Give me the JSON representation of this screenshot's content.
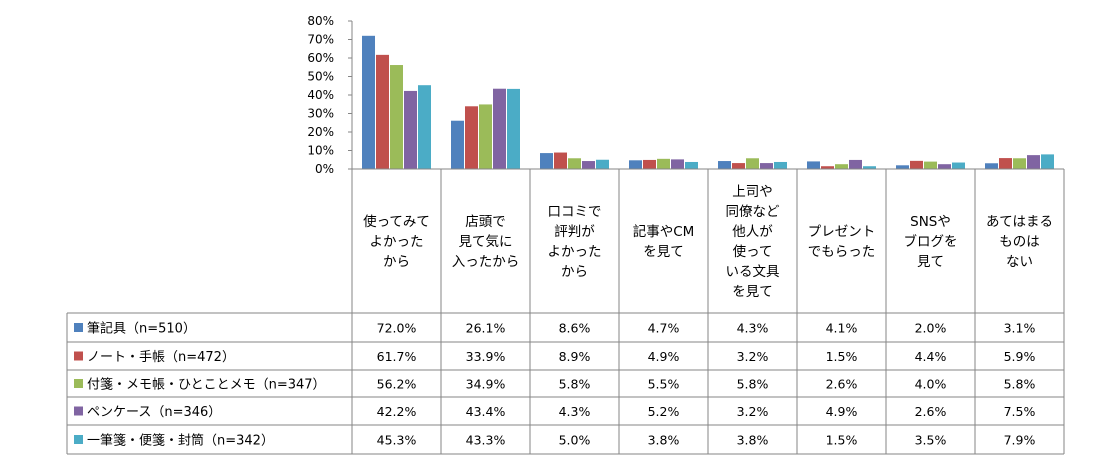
{
  "chart_data": {
    "type": "bar",
    "ylim": [
      0,
      80
    ],
    "yticks": [
      "80%",
      "70%",
      "60%",
      "50%",
      "40%",
      "30%",
      "20%",
      "10%",
      "0%"
    ],
    "grid": false,
    "categories": [
      "使ってみて\nよかった\nから",
      "店頭で\n見て気に\n入ったから",
      "口コミで\n評判が\nよかった\nから",
      "記事やCM\nを見て",
      "上司や\n同僚など\n他人が\n使って\nいる文具\nを見て",
      "プレゼント\nでもらった",
      "SNSや\nブログを\n見て",
      "あてはまる\nものは\nない"
    ],
    "series": [
      {
        "name": "筆記具（n=510）",
        "color": "#4F81BD",
        "values": [
          72.0,
          26.1,
          8.6,
          4.7,
          4.3,
          4.1,
          2.0,
          3.1
        ],
        "labels": [
          "72.0%",
          "26.1%",
          "8.6%",
          "4.7%",
          "4.3%",
          "4.1%",
          "2.0%",
          "3.1%"
        ]
      },
      {
        "name": "ノート・手帳（n=472）",
        "color": "#C0504D",
        "values": [
          61.7,
          33.9,
          8.9,
          4.9,
          3.2,
          1.5,
          4.4,
          5.9
        ],
        "labels": [
          "61.7%",
          "33.9%",
          "8.9%",
          "4.9%",
          "3.2%",
          "1.5%",
          "4.4%",
          "5.9%"
        ]
      },
      {
        "name": "付箋・メモ帳・ひとことメモ（n=347）",
        "color": "#9BBB59",
        "values": [
          56.2,
          34.9,
          5.8,
          5.5,
          5.8,
          2.6,
          4.0,
          5.8
        ],
        "labels": [
          "56.2%",
          "34.9%",
          "5.8%",
          "5.5%",
          "5.8%",
          "2.6%",
          "4.0%",
          "5.8%"
        ]
      },
      {
        "name": "ペンケース（n=346）",
        "color": "#8064A2",
        "values": [
          42.2,
          43.4,
          4.3,
          5.2,
          3.2,
          4.9,
          2.6,
          7.5
        ],
        "labels": [
          "42.2%",
          "43.4%",
          "4.3%",
          "5.2%",
          "3.2%",
          "4.9%",
          "2.6%",
          "7.5%"
        ]
      },
      {
        "name": "一筆箋・便箋・封筒（n=342）",
        "color": "#4BACC6",
        "values": [
          45.3,
          43.3,
          5.0,
          3.8,
          3.8,
          1.5,
          3.5,
          7.9
        ],
        "labels": [
          "45.3%",
          "43.3%",
          "5.0%",
          "3.8%",
          "3.8%",
          "1.5%",
          "3.5%",
          "7.9%"
        ]
      }
    ]
  }
}
